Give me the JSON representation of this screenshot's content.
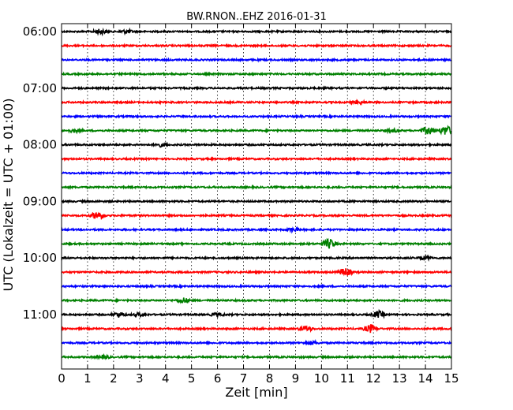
{
  "chart_data": {
    "type": "line",
    "title": "BW.RNON..EHZ 2016-01-31",
    "xlabel": "Zeit  [min]",
    "ylabel": "UTC (Lokalzeit = UTC + 01:00)",
    "xlim": [
      0,
      15
    ],
    "x_ticks": [
      "0",
      "1",
      "2",
      "3",
      "4",
      "5",
      "6",
      "7",
      "8",
      "9",
      "10",
      "11",
      "12",
      "13",
      "14",
      "15"
    ],
    "y_tick_labels": [
      "06:00",
      "07:00",
      "08:00",
      "09:00",
      "10:00",
      "11:00"
    ],
    "grid": "vertical dotted at each minute",
    "trace_colors": [
      "#000000",
      "#ff0000",
      "#0000ff",
      "#008000"
    ],
    "series": [
      {
        "start": "06:00",
        "color": "#000000",
        "events": [
          {
            "x": 1.5,
            "amp": 3
          },
          {
            "x": 2.5,
            "amp": 2
          }
        ]
      },
      {
        "start": "06:15",
        "color": "#ff0000",
        "events": []
      },
      {
        "start": "06:30",
        "color": "#0000ff",
        "events": []
      },
      {
        "start": "06:45",
        "color": "#008000",
        "events": []
      },
      {
        "start": "07:00",
        "color": "#000000",
        "events": []
      },
      {
        "start": "07:15",
        "color": "#ff0000",
        "events": [
          {
            "x": 11.4,
            "amp": 2
          }
        ]
      },
      {
        "start": "07:30",
        "color": "#0000ff",
        "events": []
      },
      {
        "start": "07:45",
        "color": "#008000",
        "events": [
          {
            "x": 0.5,
            "amp": 2
          },
          {
            "x": 12.7,
            "amp": 2
          },
          {
            "x": 14.1,
            "amp": 5
          },
          {
            "x": 14.8,
            "amp": 6
          }
        ]
      },
      {
        "start": "08:00",
        "color": "#000000",
        "events": [
          {
            "x": 3.8,
            "amp": 2
          }
        ]
      },
      {
        "start": "08:15",
        "color": "#ff0000",
        "events": []
      },
      {
        "start": "08:30",
        "color": "#0000ff",
        "events": []
      },
      {
        "start": "08:45",
        "color": "#008000",
        "events": []
      },
      {
        "start": "09:00",
        "color": "#000000",
        "events": []
      },
      {
        "start": "09:15",
        "color": "#ff0000",
        "events": [
          {
            "x": 1.4,
            "amp": 5
          }
        ]
      },
      {
        "start": "09:30",
        "color": "#0000ff",
        "events": [
          {
            "x": 8.9,
            "amp": 2
          }
        ]
      },
      {
        "start": "09:45",
        "color": "#008000",
        "events": [
          {
            "x": 10.3,
            "amp": 6
          }
        ]
      },
      {
        "start": "10:00",
        "color": "#000000",
        "events": [
          {
            "x": 14,
            "amp": 2
          }
        ]
      },
      {
        "start": "10:15",
        "color": "#ff0000",
        "events": [
          {
            "x": 10.9,
            "amp": 5
          }
        ]
      },
      {
        "start": "10:30",
        "color": "#0000ff",
        "events": []
      },
      {
        "start": "10:45",
        "color": "#008000",
        "events": [
          {
            "x": 4.7,
            "amp": 3
          }
        ]
      },
      {
        "start": "11:00",
        "color": "#000000",
        "events": [
          {
            "x": 2.2,
            "amp": 3
          },
          {
            "x": 3,
            "amp": 2
          },
          {
            "x": 6,
            "amp": 2
          },
          {
            "x": 12.2,
            "amp": 4
          }
        ]
      },
      {
        "start": "11:15",
        "color": "#ff0000",
        "events": [
          {
            "x": 9.4,
            "amp": 3
          },
          {
            "x": 11.9,
            "amp": 5
          }
        ]
      },
      {
        "start": "11:30",
        "color": "#0000ff",
        "events": [
          {
            "x": 9.6,
            "amp": 2
          }
        ]
      },
      {
        "start": "11:45",
        "color": "#008000",
        "events": [
          {
            "x": 1.6,
            "amp": 2
          }
        ]
      }
    ]
  }
}
